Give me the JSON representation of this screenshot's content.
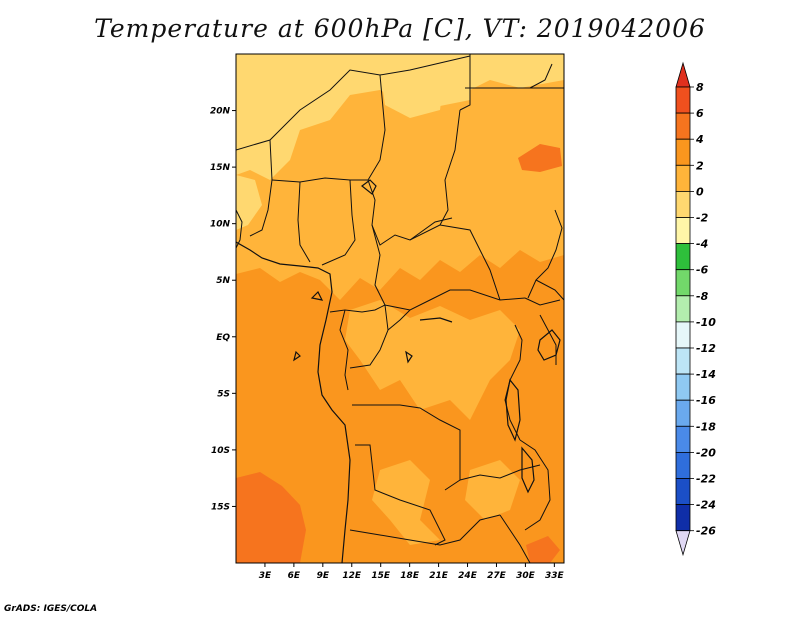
{
  "title": "Temperature at 600hPa [C], VT: 2019042006",
  "credit": "GrADS: IGES/COLA",
  "map": {
    "lon_range": [
      0,
      34
    ],
    "lat_range": [
      -20,
      25
    ],
    "x_ticks": [
      "3E",
      "6E",
      "9E",
      "12E",
      "15E",
      "18E",
      "21E",
      "24E",
      "27E",
      "30E",
      "33E"
    ],
    "y_ticks": [
      "20N",
      "15N",
      "10N",
      "5N",
      "EQ",
      "5S",
      "10S",
      "15S"
    ]
  },
  "colorbar": {
    "labels": [
      "8",
      "6",
      "4",
      "2",
      "0",
      "-2",
      "-4",
      "-6",
      "-8",
      "-10",
      "-12",
      "-14",
      "-16",
      "-18",
      "-20",
      "-22",
      "-24",
      "-26"
    ],
    "colors": [
      "#e0301e",
      "#f0501e",
      "#f6741e",
      "#fa961e",
      "#ffb43a",
      "#ffd870",
      "#fff6a8",
      "#2ebf3b",
      "#72d86a",
      "#b3edae",
      "#e6f7f9",
      "#bde5f6",
      "#8fc9f2",
      "#6aa9ee",
      "#4a8ae8",
      "#2f6edc",
      "#1b4fc7",
      "#0f2ea8",
      "#0a1673",
      "#e0d8f4"
    ]
  }
}
